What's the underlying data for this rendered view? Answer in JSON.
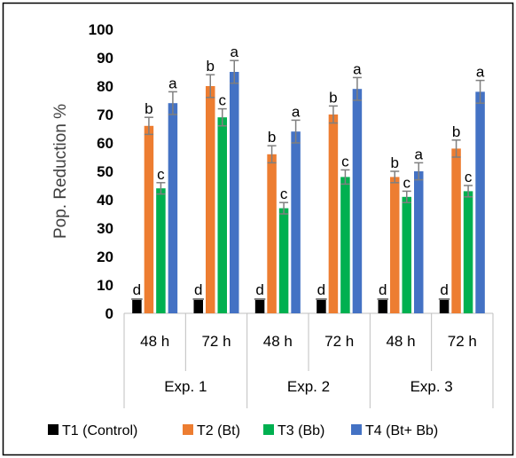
{
  "chart_data": {
    "type": "bar",
    "ylabel": "Pop. Reduction %",
    "ylim": [
      0,
      100
    ],
    "ytick_step": 10,
    "y_ticks": [
      "0",
      "10",
      "20",
      "30",
      "40",
      "50",
      "60",
      "70",
      "80",
      "90",
      "100"
    ],
    "grid": false,
    "legend_position": "bottom",
    "groups": [
      {
        "label": "Exp. 1",
        "categories": [
          "48 h",
          "72 h"
        ]
      },
      {
        "label": "Exp. 2",
        "categories": [
          "48 h",
          "72 h"
        ]
      },
      {
        "label": "Exp. 3",
        "categories": [
          "48 h",
          "72 h"
        ]
      }
    ],
    "categories": [
      "48 h",
      "72 h",
      "48 h",
      "72 h",
      "48 h",
      "72 h"
    ],
    "series": [
      {
        "name": "T1 (Control)",
        "color": "#000000",
        "values": [
          5,
          5,
          5,
          5,
          5,
          5
        ],
        "errors": [
          0,
          0,
          0,
          0,
          0,
          0
        ],
        "letters": [
          "d",
          "d",
          "d",
          "d",
          "d",
          "d"
        ]
      },
      {
        "name": "T2 (Bt)",
        "color": "#ed7d31",
        "values": [
          66,
          80,
          56,
          70,
          48,
          58
        ],
        "errors": [
          3,
          4,
          3,
          3,
          2,
          3
        ],
        "letters": [
          "b",
          "b",
          "b",
          "b",
          "b",
          "b"
        ]
      },
      {
        "name": "T3 (Bb)",
        "color": "#00b050",
        "values": [
          44,
          69,
          37,
          48,
          41,
          43
        ],
        "errors": [
          2,
          3,
          2,
          2.5,
          2,
          2
        ],
        "letters": [
          "c",
          "c",
          "c",
          "c",
          "c",
          "c"
        ]
      },
      {
        "name": "T4 (Bt+ Bb)",
        "color": "#4472c4",
        "values": [
          74,
          85,
          64,
          79,
          50,
          78
        ],
        "errors": [
          4,
          4,
          4,
          4,
          3,
          4
        ],
        "letters": [
          "a",
          "a",
          "a",
          "a",
          "a",
          "a"
        ]
      }
    ]
  }
}
